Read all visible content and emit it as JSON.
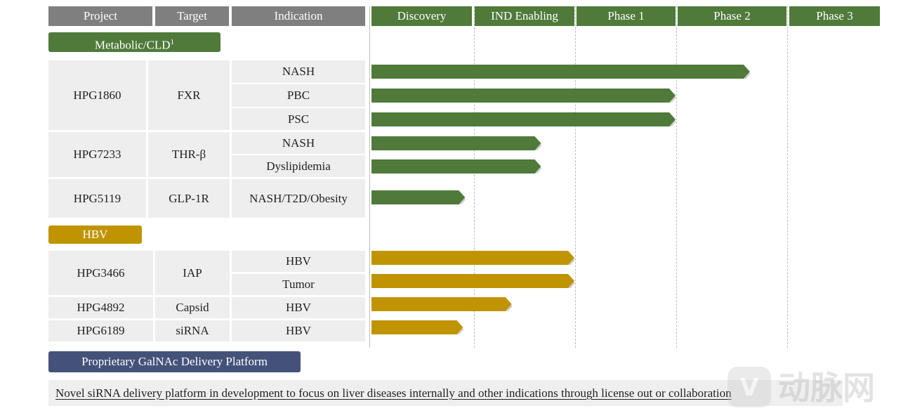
{
  "headers": {
    "project": "Project",
    "target": "Target",
    "indication": "Indication",
    "stages": [
      "Discovery",
      "IND Enabling",
      "Phase 1",
      "Phase 2",
      "Phase 3"
    ]
  },
  "categories": {
    "metabolic": "Metabolic/CLD",
    "metabolic_sup": "1",
    "hbv": "HBV",
    "platform": "Proprietary GalNAc Delivery Platform"
  },
  "rows": [
    {
      "project": "HPG1860",
      "target": "FXR",
      "indication": "NASH"
    },
    {
      "project": "",
      "target": "",
      "indication": "PBC"
    },
    {
      "project": "",
      "target": "",
      "indication": "PSC"
    },
    {
      "project": "HPG7233",
      "target": "THR-β",
      "indication": "NASH"
    },
    {
      "project": "",
      "target": "",
      "indication": "Dyslipidemia"
    },
    {
      "project": "HPG5119",
      "target": "GLP-1R",
      "indication": "NASH/T2D/Obesity"
    },
    {
      "project": "HPG3466",
      "target": "IAP",
      "indication": "HBV"
    },
    {
      "project": "",
      "target": "",
      "indication": "Tumor"
    },
    {
      "project": "HPG4892",
      "target": "Capsid",
      "indication": "HBV"
    },
    {
      "project": "HPG6189",
      "target": "siRNA",
      "indication": "HBV"
    }
  ],
  "note": "Novel siRNA delivery platform in development to focus on liver diseases internally and other indications through license out or collaboration",
  "watermark": "动脉网",
  "colors": {
    "green": "#4f7a3a",
    "gold": "#c09400",
    "navy": "#44527a",
    "header_gray": "#7f7f7f"
  },
  "chart_data": {
    "type": "bar",
    "orientation": "horizontal",
    "stage_axis": [
      "Discovery",
      "IND Enabling",
      "Phase 1",
      "Phase 2",
      "Phase 3"
    ],
    "unit": "stage progress (0 = start of Discovery, 5 = end of Phase 3)",
    "xlim": [
      0,
      5
    ],
    "grid": true,
    "bars": [
      {
        "project": "HPG1860",
        "indication": "NASH",
        "progress": 3.67,
        "group": "Metabolic/CLD"
      },
      {
        "project": "HPG1860",
        "indication": "PBC",
        "progress": 3.0,
        "group": "Metabolic/CLD"
      },
      {
        "project": "HPG1860",
        "indication": "PSC",
        "progress": 3.0,
        "group": "Metabolic/CLD"
      },
      {
        "project": "HPG7233",
        "indication": "NASH",
        "progress": 1.67,
        "group": "Metabolic/CLD"
      },
      {
        "project": "HPG7233",
        "indication": "Dyslipidemia",
        "progress": 1.67,
        "group": "Metabolic/CLD"
      },
      {
        "project": "HPG5119",
        "indication": "NASH/T2D/Obesity",
        "progress": 0.92,
        "group": "Metabolic/CLD"
      },
      {
        "project": "HPG3466",
        "indication": "HBV",
        "progress": 2.0,
        "group": "HBV"
      },
      {
        "project": "HPG3466",
        "indication": "Tumor",
        "progress": 2.0,
        "group": "HBV"
      },
      {
        "project": "HPG4892",
        "indication": "HBV",
        "progress": 1.38,
        "group": "HBV"
      },
      {
        "project": "HPG6189",
        "indication": "HBV",
        "progress": 0.9,
        "group": "HBV"
      }
    ]
  }
}
